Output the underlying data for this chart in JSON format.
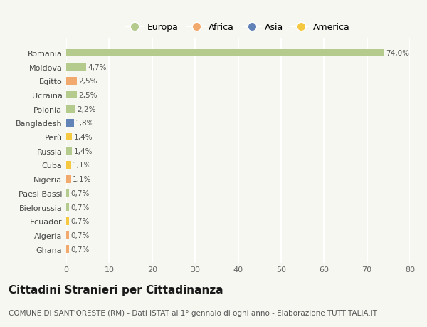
{
  "countries": [
    "Romania",
    "Moldova",
    "Egitto",
    "Ucraina",
    "Polonia",
    "Bangladesh",
    "Perù",
    "Russia",
    "Cuba",
    "Nigeria",
    "Paesi Bassi",
    "Bielorussia",
    "Ecuador",
    "Algeria",
    "Ghana"
  ],
  "values": [
    74.0,
    4.7,
    2.5,
    2.5,
    2.2,
    1.8,
    1.4,
    1.4,
    1.1,
    1.1,
    0.7,
    0.7,
    0.7,
    0.7,
    0.7
  ],
  "labels": [
    "74,0%",
    "4,7%",
    "2,5%",
    "2,5%",
    "2,2%",
    "1,8%",
    "1,4%",
    "1,4%",
    "1,1%",
    "1,1%",
    "0,7%",
    "0,7%",
    "0,7%",
    "0,7%",
    "0,7%"
  ],
  "continents": [
    "Europa",
    "Europa",
    "Africa",
    "Europa",
    "Europa",
    "Asia",
    "America",
    "Europa",
    "America",
    "Africa",
    "Europa",
    "Europa",
    "America",
    "Africa",
    "Africa"
  ],
  "continent_colors": {
    "Europa": "#b5ca8d",
    "Africa": "#f2a96e",
    "Asia": "#6283b8",
    "America": "#f5c842"
  },
  "legend_order": [
    "Europa",
    "Africa",
    "Asia",
    "America"
  ],
  "background_color": "#f7f7f2",
  "plot_bg_color": "#f7f7f2",
  "grid_color": "#ffffff",
  "title": "Cittadini Stranieri per Cittadinanza",
  "subtitle": "COMUNE DI SANT'ORESTE (RM) - Dati ISTAT al 1° gennaio di ogni anno - Elaborazione TUTTITALIA.IT",
  "xlim": [
    0,
    80
  ],
  "xticks": [
    0,
    10,
    20,
    30,
    40,
    50,
    60,
    70,
    80
  ],
  "bar_height": 0.55,
  "label_fontsize": 7.5,
  "ytick_fontsize": 8,
  "xtick_fontsize": 8,
  "title_fontsize": 11,
  "subtitle_fontsize": 7.5,
  "legend_fontsize": 9
}
